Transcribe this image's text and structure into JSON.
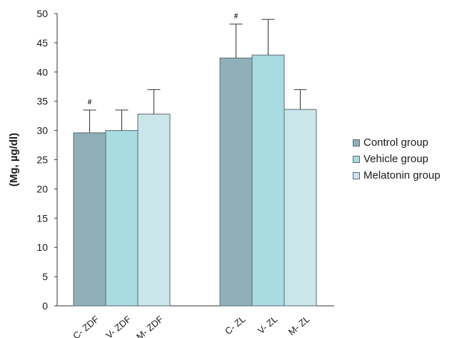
{
  "chart_data": {
    "type": "bar",
    "title": "",
    "xlabel": "",
    "ylabel": "(Mg, µg/dl)",
    "ylim": [
      0,
      50
    ],
    "yticks": [
      0,
      5,
      10,
      15,
      20,
      25,
      30,
      35,
      40,
      45,
      50
    ],
    "grid": false,
    "legend_position": "right",
    "groups": [
      "ZDF",
      "ZL"
    ],
    "bars": [
      {
        "label": "C- ZDF",
        "group": "ZDF",
        "series": "Control group",
        "value": 29.6,
        "error": 3.9,
        "annotation": "#"
      },
      {
        "label": "V- ZDF",
        "group": "ZDF",
        "series": "Vehicle group",
        "value": 30.0,
        "error": 3.5,
        "annotation": ""
      },
      {
        "label": "M- ZDF",
        "group": "ZDF",
        "series": "Melatonin group",
        "value": 32.8,
        "error": 4.2,
        "annotation": ""
      },
      {
        "label": "C- ZL",
        "group": "ZL",
        "series": "Control group",
        "value": 42.4,
        "error": 5.8,
        "annotation": "#"
      },
      {
        "label": "V- ZL",
        "group": "ZL",
        "series": "Vehicle group",
        "value": 42.9,
        "error": 6.1,
        "annotation": ""
      },
      {
        "label": "M- ZL",
        "group": "ZL",
        "series": "Melatonin group",
        "value": 33.6,
        "error": 3.4,
        "annotation": ""
      }
    ],
    "series": [
      {
        "name": "Control group",
        "color": "#8fb0b8"
      },
      {
        "name": "Vehicle group",
        "color": "#a9dbe2"
      },
      {
        "name": "Melatonin group",
        "color": "#cbe6ea"
      }
    ]
  }
}
